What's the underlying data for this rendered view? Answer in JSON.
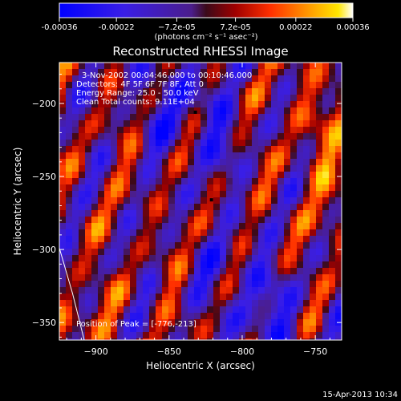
{
  "chart_data": {
    "type": "heatmap",
    "title": "Reconstructed RHESSI Image",
    "xlabel": "Heliocentric X (arcsec)",
    "ylabel": "Heliocentric Y (arcsec)",
    "xlim": [
      -925,
      -732
    ],
    "ylim": [
      -362,
      -172
    ],
    "x_ticks": [
      -900,
      -850,
      -800,
      -750
    ],
    "y_ticks": [
      -200,
      -250,
      -300,
      -350
    ],
    "colorbar": {
      "range": [
        -0.00036,
        0.00036
      ],
      "tick_values": [
        -0.00036,
        -0.00022,
        -7.2e-05,
        7.2e-05,
        0.00022,
        0.00036
      ],
      "tick_labels": [
        "-0.00036",
        "-0.00022",
        "−7.2e-05",
        "7.2e-05",
        "0.00022",
        "0.00036"
      ],
      "unit_label": "(photons cm⁻² s⁻¹ asec⁻²)"
    },
    "annotations": [
      "3-Nov-2002 00:04:46.000 to 00:10:46.000",
      "Detectors: 4F 5F 6F 7F 8F, Att 0",
      "Energy Range: 25.0 - 50.0 keV",
      "Clean    Total counts: 9.11E+04"
    ],
    "peak_label": "Position of Peak = [-776,-213]",
    "markers": [
      {
        "x": -832,
        "y": -206
      },
      {
        "x": -821,
        "y": -266
      }
    ],
    "limb_curve": [
      [
        -925,
        -299
      ],
      [
        -916,
        -330
      ],
      [
        -908,
        -362
      ]
    ]
  },
  "footer": {
    "timestamp": "15-Apr-2013 10:34"
  }
}
